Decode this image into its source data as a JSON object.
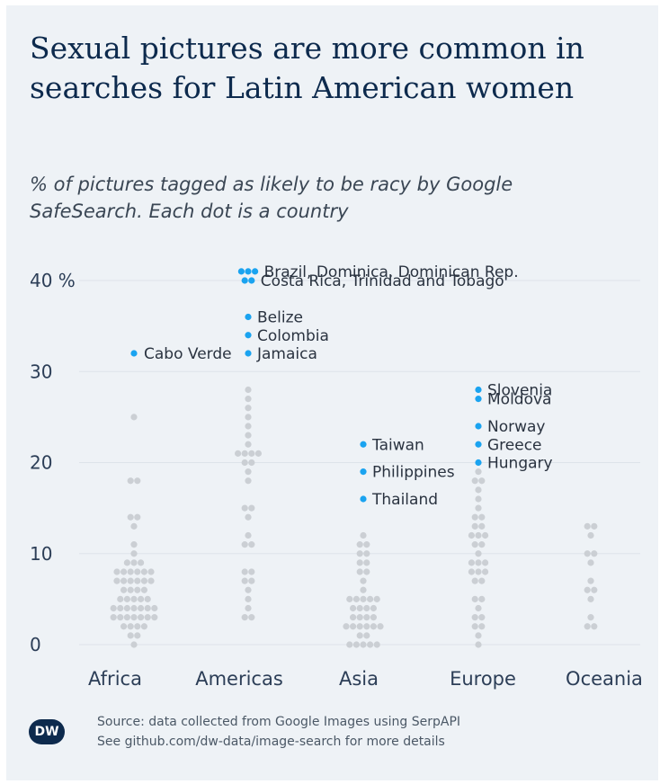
{
  "title": "Sexual pictures are more common in searches for Latin American women",
  "subtitle": "% of pictures tagged as likely to be racy by Google SafeSearch. Each dot is a country",
  "colors": {
    "highlight": "#1aa3f0",
    "default": "#cbcfd4",
    "background": "#eef2f6",
    "title": "#0d2a4d",
    "logo_bg": "#0d2a4d"
  },
  "logo": {
    "text": "DW"
  },
  "source": {
    "line1": "Source: data collected from Google Images using SerpAPI",
    "line2": "See github.com/dw-data/image-search for more details"
  },
  "chart_data": {
    "type": "scatter",
    "subtype": "beeswarm",
    "title": "Sexual pictures are more common in searches for Latin American women",
    "ylabel": "% of pictures tagged as likely to be racy",
    "ylim": [
      0,
      40
    ],
    "yticks": [
      {
        "value": 0,
        "label": "0"
      },
      {
        "value": 10,
        "label": "10"
      },
      {
        "value": 20,
        "label": "20"
      },
      {
        "value": 30,
        "label": "30"
      },
      {
        "value": 40,
        "label": "40 %"
      }
    ],
    "grid": true,
    "categories": [
      "Africa",
      "Americas",
      "Asia",
      "Europe",
      "Oceania"
    ],
    "series": [
      {
        "name": "Africa",
        "values": [
          32,
          25,
          18,
          18,
          14,
          14,
          13,
          11,
          10,
          9,
          9,
          9,
          8,
          8,
          8,
          8,
          8,
          8,
          7,
          7,
          7,
          7,
          7,
          7,
          6,
          6,
          6,
          6,
          5,
          5,
          5,
          5,
          5,
          4,
          4,
          4,
          4,
          4,
          4,
          4,
          3,
          3,
          3,
          3,
          3,
          3,
          3,
          2,
          2,
          2,
          2,
          1,
          1,
          0
        ],
        "highlight": [
          {
            "value": 32,
            "label": "Cabo Verde"
          }
        ]
      },
      {
        "name": "Americas",
        "values": [
          41,
          41,
          41,
          40,
          40,
          36,
          34,
          32,
          28,
          27,
          26,
          25,
          24,
          23,
          22,
          21,
          21,
          21,
          21,
          20,
          20,
          19,
          18,
          15,
          15,
          14,
          12,
          11,
          11,
          8,
          8,
          7,
          7,
          6,
          5,
          4,
          3,
          3
        ],
        "highlight": [
          {
            "value": 41,
            "label": "Brazil, Dominica, Dominican Rep."
          },
          {
            "value": 40,
            "label": "Costa Rica, Trinidad and Tobago"
          },
          {
            "value": 36,
            "label": "Belize"
          },
          {
            "value": 34,
            "label": "Colombia"
          },
          {
            "value": 32,
            "label": "Jamaica"
          }
        ]
      },
      {
        "name": "Asia",
        "values": [
          22,
          19,
          16,
          12,
          11,
          11,
          10,
          10,
          9,
          9,
          8,
          8,
          7,
          6,
          5,
          5,
          5,
          5,
          5,
          4,
          4,
          4,
          4,
          3,
          3,
          3,
          3,
          2,
          2,
          2,
          2,
          2,
          2,
          1,
          1,
          0,
          0,
          0,
          0,
          0
        ],
        "highlight": [
          {
            "value": 22,
            "label": "Taiwan"
          },
          {
            "value": 19,
            "label": "Philippines"
          },
          {
            "value": 16,
            "label": "Thailand"
          }
        ]
      },
      {
        "name": "Europe",
        "values": [
          28,
          27,
          24,
          22,
          20,
          19,
          18,
          18,
          17,
          16,
          15,
          14,
          14,
          13,
          13,
          12,
          12,
          12,
          11,
          11,
          10,
          9,
          9,
          9,
          8,
          8,
          8,
          7,
          7,
          5,
          5,
          4,
          3,
          3,
          2,
          2,
          1,
          0
        ],
        "highlight": [
          {
            "value": 28,
            "label": "Slovenia"
          },
          {
            "value": 27,
            "label": "Moldova"
          },
          {
            "value": 24,
            "label": "Norway"
          },
          {
            "value": 22,
            "label": "Greece"
          },
          {
            "value": 20,
            "label": "Hungary"
          }
        ]
      },
      {
        "name": "Oceania",
        "values": [
          13,
          13,
          12,
          10,
          10,
          9,
          7,
          6,
          6,
          5,
          3,
          2,
          2
        ],
        "highlight": []
      }
    ]
  }
}
